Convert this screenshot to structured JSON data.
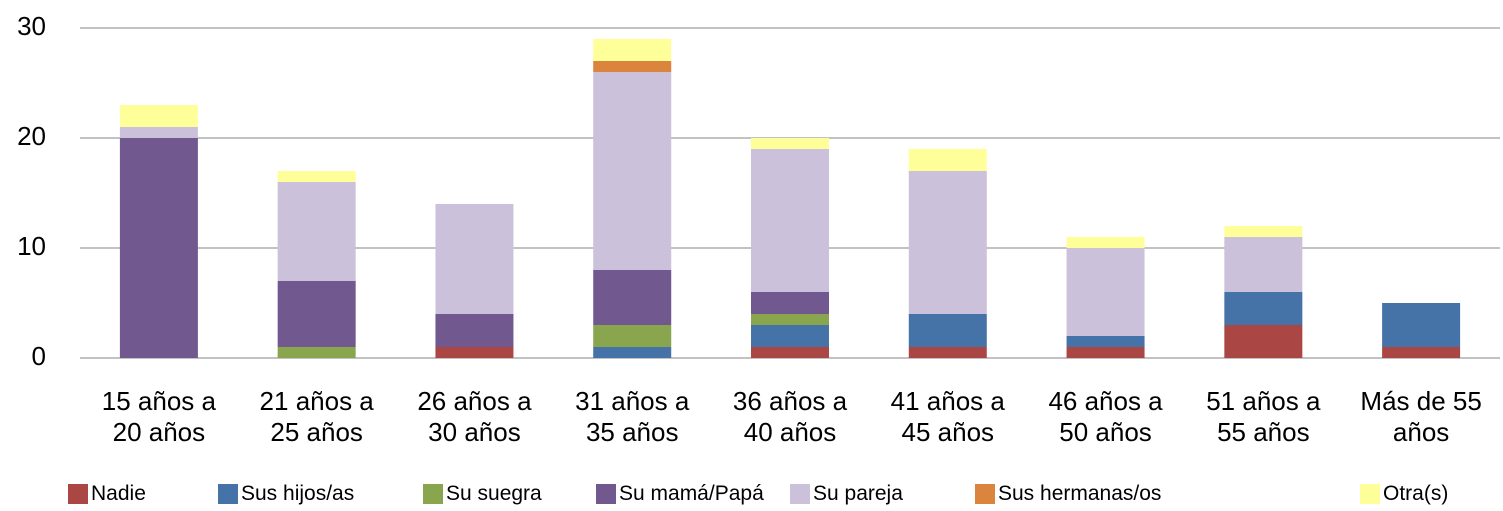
{
  "chart_data": {
    "type": "stacked_bar",
    "categories": [
      "15 años a 20 años",
      "21 años a 25 años",
      "26 años a 30 años",
      "31 años a 35 años",
      "36 años a 40 años",
      "41 años a 45 años",
      "46 años a 50 años",
      "51 años a 55 años",
      "Más de 55 años"
    ],
    "series": [
      {
        "name": "Nadie",
        "color": "#aa4643",
        "values": [
          0,
          0,
          1,
          0,
          1,
          1,
          1,
          3,
          1
        ]
      },
      {
        "name": "Sus hijos/as",
        "color": "#4572a7",
        "values": [
          0,
          0,
          0,
          1,
          2,
          3,
          1,
          3,
          4
        ]
      },
      {
        "name": "Su suegra",
        "color": "#89a54e",
        "values": [
          0,
          1,
          0,
          2,
          1,
          0,
          0,
          0,
          0
        ]
      },
      {
        "name": "Su mamá/Papá",
        "color": "#71588f",
        "values": [
          20,
          6,
          3,
          5,
          2,
          0,
          0,
          0,
          0
        ]
      },
      {
        "name": "Su pareja",
        "color": "#ccc1da",
        "values": [
          1,
          9,
          10,
          18,
          13,
          13,
          8,
          5,
          0
        ]
      },
      {
        "name": "Sus hermanas/os",
        "color": "#db843d",
        "values": [
          0,
          0,
          0,
          1,
          0,
          0,
          0,
          0,
          0
        ]
      },
      {
        "name": "Otra(s)",
        "color": "#ffff99",
        "values": [
          2,
          1,
          0,
          2,
          1,
          2,
          1,
          1,
          0
        ]
      }
    ],
    "ylim": [
      0,
      30
    ],
    "yticks": [
      0,
      10,
      20,
      30
    ],
    "grid": true,
    "legend": "bottom"
  }
}
